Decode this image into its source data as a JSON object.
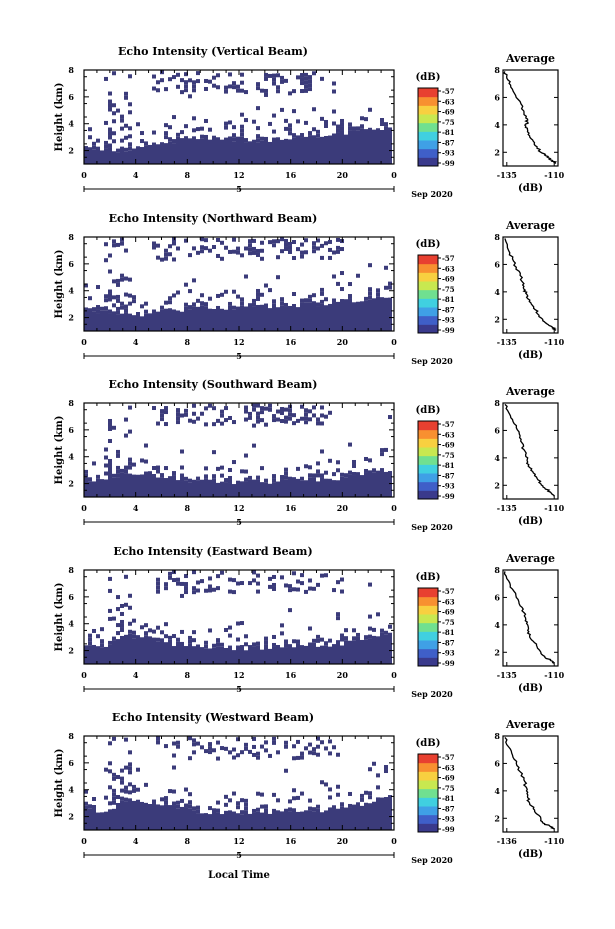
{
  "figure": {
    "xlabel": "Local Time",
    "date_label": "Sep 2020",
    "day_label": "5",
    "colorbar_unit": "(dB)",
    "colorbar_ticks": [
      "-57",
      "-63",
      "-69",
      "-75",
      "-81",
      "-87",
      "-93",
      "-99"
    ],
    "colors": {
      "echo": "#3b3b7a",
      "colorbar": [
        "#3a3a8c",
        "#3f5fc8",
        "#3fa0e6",
        "#40d0e0",
        "#70e090",
        "#c8e850",
        "#f8d040",
        "#f89030",
        "#e84030"
      ]
    }
  },
  "chart_data": [
    {
      "type": "heatmap",
      "title": "Echo Intensity (Vertical Beam)",
      "ylabel": "Height (km)",
      "x_ticks": [
        "0",
        "4",
        "8",
        "12",
        "16",
        "20",
        "0"
      ],
      "y_ticks": [
        "2",
        "4",
        "6",
        "8"
      ],
      "xlim": [
        0,
        24
      ],
      "ylim": [
        1,
        8
      ],
      "layer_top_km": [
        2.2,
        2.1,
        2.0,
        2.1,
        2.3,
        2.5,
        2.6,
        2.8,
        2.9,
        3.0,
        3.0,
        2.9,
        2.9,
        2.8,
        2.8,
        2.8,
        2.9,
        3.0,
        3.1,
        3.2,
        3.3,
        3.4,
        3.5,
        3.7,
        3.8
      ],
      "upper_layer_km": [
        7.3,
        8.0
      ],
      "average": {
        "title": "Average",
        "xlabel": "(dB)",
        "x_ticks": [
          "-135",
          "-110"
        ],
        "y_ticks": [
          "2",
          "4",
          "6",
          "8"
        ],
        "xlim": [
          -137,
          -108
        ],
        "ylim": [
          1,
          8
        ],
        "x": [
          -136,
          -135,
          -133,
          -131,
          -128,
          -126,
          -125,
          -124,
          -125,
          -124,
          -123,
          -121,
          -119,
          -117,
          -115,
          -113,
          -111,
          -109
        ],
        "y": [
          7.9,
          7.4,
          6.9,
          6.3,
          5.7,
          5.0,
          4.5,
          4.2,
          3.9,
          3.6,
          3.2,
          2.8,
          2.4,
          2.0,
          1.8,
          1.6,
          1.4,
          1.2
        ]
      }
    },
    {
      "type": "heatmap",
      "title": "Echo Intensity (Northward Beam)",
      "ylabel": "Height (km)",
      "x_ticks": [
        "0",
        "4",
        "8",
        "12",
        "16",
        "20",
        "0"
      ],
      "y_ticks": [
        "2",
        "4",
        "6",
        "8"
      ],
      "xlim": [
        0,
        24
      ],
      "ylim": [
        1,
        8
      ],
      "layer_top_km": [
        2.6,
        2.5,
        2.4,
        2.2,
        2.2,
        2.3,
        2.5,
        2.6,
        2.7,
        2.8,
        2.8,
        2.8,
        2.8,
        2.9,
        2.9,
        2.9,
        3.0,
        3.0,
        3.0,
        3.1,
        3.2,
        3.3,
        3.4,
        3.5,
        3.6
      ],
      "upper_layer_km": [
        7.8,
        8.0
      ],
      "average": {
        "title": "Average",
        "xlabel": "(dB)",
        "x_ticks": [
          "-135",
          "-110"
        ],
        "y_ticks": [
          "2",
          "4",
          "6",
          "8"
        ],
        "xlim": [
          -137,
          -108
        ],
        "ylim": [
          1,
          8
        ],
        "x": [
          -136,
          -134,
          -132,
          -130,
          -128,
          -126,
          -126,
          -125,
          -124,
          -122,
          -120,
          -118,
          -116,
          -113,
          -111,
          -109
        ],
        "y": [
          7.9,
          7.0,
          6.4,
          5.8,
          5.2,
          4.6,
          4.2,
          3.9,
          3.5,
          3.1,
          2.7,
          2.3,
          1.9,
          1.6,
          1.4,
          1.2
        ]
      }
    },
    {
      "type": "heatmap",
      "title": "Echo Intensity (Southward Beam)",
      "ylabel": "Height (km)",
      "x_ticks": [
        "0",
        "4",
        "8",
        "12",
        "16",
        "20",
        "0"
      ],
      "y_ticks": [
        "2",
        "4",
        "6",
        "8"
      ],
      "xlim": [
        0,
        24
      ],
      "ylim": [
        1,
        8
      ],
      "layer_top_km": [
        2.4,
        2.2,
        2.5,
        2.7,
        2.8,
        2.7,
        2.5,
        2.4,
        2.3,
        2.2,
        2.2,
        2.1,
        2.1,
        2.1,
        2.2,
        2.2,
        2.3,
        2.3,
        2.3,
        2.4,
        2.5,
        2.6,
        2.8,
        3.0,
        3.1
      ],
      "upper_layer_km": [
        7.4,
        8.0
      ],
      "average": {
        "title": "Average",
        "xlabel": "(dB)",
        "x_ticks": [
          "-135",
          "-110"
        ],
        "y_ticks": [
          "2",
          "4",
          "6",
          "8"
        ],
        "xlim": [
          -137,
          -108
        ],
        "ylim": [
          1,
          8
        ],
        "x": [
          -136,
          -134,
          -132,
          -130,
          -128,
          -127,
          -126,
          -125,
          -124,
          -123,
          -121,
          -119,
          -117,
          -115,
          -112,
          -110
        ],
        "y": [
          7.9,
          7.3,
          6.8,
          6.2,
          5.6,
          5.1,
          4.6,
          4.1,
          3.7,
          3.3,
          2.9,
          2.5,
          2.1,
          1.8,
          1.5,
          1.2
        ]
      }
    },
    {
      "type": "heatmap",
      "title": "Echo Intensity (Eastward Beam)",
      "ylabel": "Height (km)",
      "x_ticks": [
        "0",
        "4",
        "8",
        "12",
        "16",
        "20",
        "0"
      ],
      "y_ticks": [
        "2",
        "4",
        "6",
        "8"
      ],
      "xlim": [
        0,
        24
      ],
      "ylim": [
        1,
        8
      ],
      "layer_top_km": [
        2.5,
        2.3,
        2.6,
        3.0,
        3.1,
        2.9,
        2.7,
        2.5,
        2.4,
        2.3,
        2.3,
        2.2,
        2.2,
        2.2,
        2.3,
        2.3,
        2.4,
        2.4,
        2.4,
        2.5,
        2.6,
        2.8,
        3.0,
        3.2,
        3.4
      ],
      "upper_layer_km": [
        7.6,
        8.0
      ],
      "average": {
        "title": "Average",
        "xlabel": "(dB)",
        "x_ticks": [
          "-135",
          "-110"
        ],
        "y_ticks": [
          "2",
          "4",
          "6",
          "8"
        ],
        "xlim": [
          -137,
          -108
        ],
        "ylim": [
          1,
          8
        ],
        "x": [
          -136,
          -134,
          -132,
          -130,
          -128,
          -126,
          -125,
          -124,
          -124,
          -123,
          -121,
          -119,
          -117,
          -115,
          -112,
          -110
        ],
        "y": [
          7.9,
          7.2,
          6.6,
          6.0,
          5.4,
          4.9,
          4.4,
          4.0,
          3.6,
          3.2,
          2.8,
          2.4,
          2.0,
          1.7,
          1.4,
          1.2
        ]
      }
    },
    {
      "type": "heatmap",
      "title": "Echo Intensity (Westward Beam)",
      "ylabel": "Height (km)",
      "x_ticks": [
        "0",
        "4",
        "8",
        "12",
        "16",
        "20",
        "0"
      ],
      "y_ticks": [
        "2",
        "4",
        "6",
        "8"
      ],
      "xlim": [
        0,
        24
      ],
      "ylim": [
        1,
        8
      ],
      "layer_top_km": [
        2.6,
        2.4,
        2.7,
        3.1,
        3.2,
        3.0,
        2.8,
        2.6,
        2.5,
        2.4,
        2.4,
        2.3,
        2.3,
        2.3,
        2.4,
        2.4,
        2.4,
        2.5,
        2.5,
        2.6,
        2.7,
        2.9,
        3.1,
        3.3,
        3.5
      ],
      "upper_layer_km": [
        7.7,
        8.0
      ],
      "average": {
        "title": "Average",
        "xlabel": "(dB)",
        "x_ticks": [
          "-136",
          "-110"
        ],
        "y_ticks": [
          "2",
          "4",
          "6",
          "8"
        ],
        "xlim": [
          -137,
          -108
        ],
        "ylim": [
          1,
          8
        ],
        "x": [
          -136,
          -134,
          -132,
          -130,
          -128,
          -126,
          -125,
          -124,
          -124,
          -123,
          -121,
          -119,
          -117,
          -115,
          -112,
          -110
        ],
        "y": [
          7.9,
          7.2,
          6.6,
          6.0,
          5.4,
          4.8,
          4.3,
          3.9,
          3.5,
          3.1,
          2.7,
          2.3,
          1.9,
          1.6,
          1.4,
          1.2
        ]
      }
    }
  ]
}
